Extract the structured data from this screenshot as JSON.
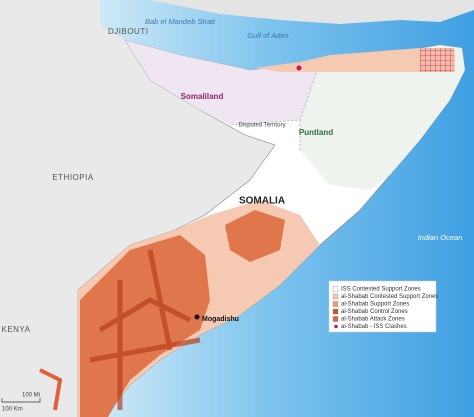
{
  "map": {
    "labels": {
      "bab_el_mandeb": "Bab el Mandeb Strait",
      "djibouti": "DJIBOUTI",
      "gulf_of_aden": "Gulf of Aden",
      "somaliland": "Somaliland",
      "disputed": "Disputed Territory",
      "puntland": "Puntland",
      "ethiopia": "ETHIOPIA",
      "somalia": "SOMALIA",
      "indian_ocean": "Indian Ocean",
      "kenya": "KENYA",
      "mogadishu": "Mogadishu"
    },
    "legend": {
      "items": [
        {
          "label": "ISS Contested Support Zones",
          "color": "#ffffff"
        },
        {
          "label": "al-Shabab Contested Support Zones",
          "color": "#f6c9b3"
        },
        {
          "label": "al-Shabab Support Zones",
          "color": "#ef9a70"
        },
        {
          "label": "al-Shabab Control Zones",
          "color": "#d2502a"
        },
        {
          "label": "al-Shabab Attack Zones",
          "color": "#e0603c"
        },
        {
          "label": "al-Shabab - ISS Clashes",
          "color": "#c2185b"
        }
      ]
    },
    "scale": {
      "miles": "100 Mi",
      "km": "100 Km"
    }
  }
}
